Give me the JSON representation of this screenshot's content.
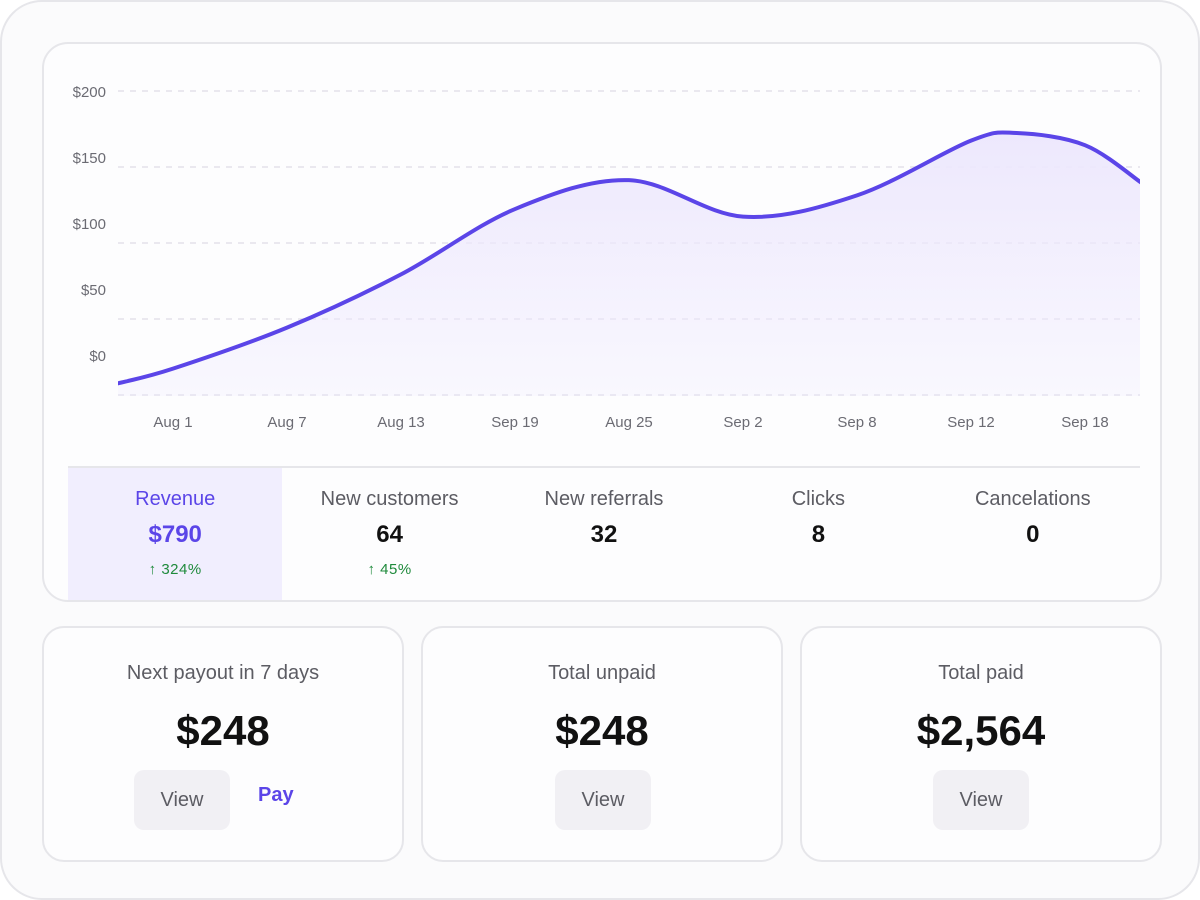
{
  "chart_data": {
    "type": "area",
    "title": "",
    "xlabel": "",
    "ylabel": "",
    "categories": [
      "Aug 1",
      "Aug 7",
      "Aug 13",
      "Sep 19",
      "Aug 25",
      "Sep 2",
      "Sep 8",
      "Sep 12",
      "Sep 18"
    ],
    "y_tick_labels": [
      "$200",
      "$150",
      "$100",
      "$50",
      "$0"
    ],
    "y_ticks": [
      200,
      150,
      100,
      50,
      0
    ],
    "ylim": [
      0,
      200
    ],
    "grid": true,
    "series": [
      {
        "name": "Revenue",
        "x": [
          -0.5,
          0,
          1,
          2,
          3,
          4,
          5,
          6,
          7,
          7.4,
          8,
          8.5
        ],
        "values": [
          8,
          18,
          45,
          80,
          123,
          142,
          118,
          132,
          168,
          173,
          165,
          140
        ]
      }
    ],
    "colors": {
      "line": "#5b45e8",
      "fill": "#ede8fd"
    }
  },
  "stats": [
    {
      "label": "Revenue",
      "value": "$790",
      "change": "↑ 324%"
    },
    {
      "label": "New customers",
      "value": "64",
      "change": "↑ 45%"
    },
    {
      "label": "New referrals",
      "value": "32",
      "change": ""
    },
    {
      "label": "Clicks",
      "value": "8",
      "change": ""
    },
    {
      "label": "Cancelations",
      "value": "0",
      "change": ""
    }
  ],
  "cards": {
    "payout": {
      "title": "Next payout in 7 days",
      "amount": "$248",
      "view_label": "View",
      "pay_label": "Pay"
    },
    "unpaid": {
      "title": "Total unpaid",
      "amount": "$248",
      "view_label": "View"
    },
    "paid": {
      "title": "Total paid",
      "amount": "$2,564",
      "view_label": "View"
    }
  },
  "colors": {
    "accent": "#5b45e8",
    "positive": "#1f8a3c"
  }
}
